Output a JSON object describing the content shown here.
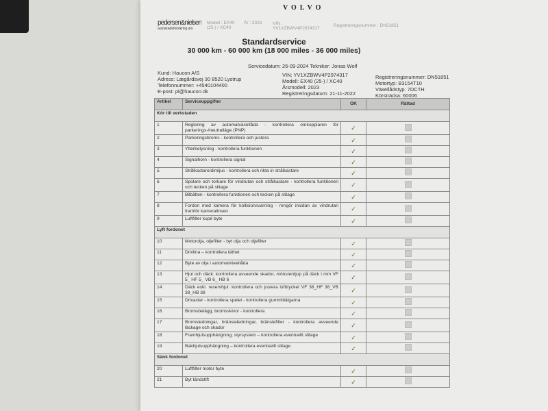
{
  "header": {
    "brand": "VOLVO",
    "dealer_logo": "pedersen&nielsen",
    "dealer_sub": "autoskadeforsikring a/s",
    "faint_model": "Modell : EX40 (25-) / XC40",
    "faint_year": "År : 2023",
    "faint_vin": "VIN : YV1XZBWV4P2974317",
    "faint_reg": "Registreringsnummer : DN51851"
  },
  "title": "Standardservice",
  "subtitle": "30 000 km - 60 000 km (18 000 miles - 36 000 miles)",
  "service_line": "Servicedatum: 26-09-2024   Tekniker: Jonas Wolf",
  "customer": [
    "Kund:  Haucon A/S",
    "Adress:  Lægårdsvej 30 8520 Lystrup",
    "Telefonnummer:  +4540104400",
    "E-post:  pl@haucon.dk"
  ],
  "vehicle": [
    "VIN:  YV1XZBWV4P2974317",
    "Modell:  EX40 (25-) / XC40",
    "Årsmodell:  2023",
    "Registreringsdatum:  21-11-2022"
  ],
  "vehicle2": [
    "Registreringsnummer:  DN51851",
    "Motortyp:  B3154T10",
    "Växellådstyp:  7DCTH",
    "Körsträcka:  60006"
  ],
  "table": {
    "headers": [
      "Artikel",
      "Serviceuppgifter",
      "OK",
      "Rättad"
    ],
    "check": "✓",
    "rows": [
      {
        "section": "Kör till verkstaden"
      },
      {
        "n": "1",
        "t": "Reglering av automatväxellåda - kontrollera omkopplaren för parkerings-/neutralläge (PNP)"
      },
      {
        "n": "2",
        "t": "Parkeringsbroms - kontrollera och justera"
      },
      {
        "n": "3",
        "t": "Ytterbelysning - kontrollera funktionen"
      },
      {
        "n": "4",
        "t": "Signalhorn - kontrollera signal"
      },
      {
        "n": "5",
        "t": "Strålkastare/dimljus - kontrollera och rikta in strålkastare"
      },
      {
        "n": "6",
        "t": "Spolare och torkare för vindrutan och strålkastare - kontrollera funktionen och tecken på slitage"
      },
      {
        "n": "7",
        "t": "Bilbälten - kontrollera funktionen och tecken på slitage"
      },
      {
        "n": "8",
        "t": "Fordon med kamera för kollisionsvarning - rengör insidan av vindrutan framför kameralinsen"
      },
      {
        "n": "9",
        "t": "Luftfilter kupé byte"
      },
      {
        "section": "Lyft fordonet"
      },
      {
        "n": "10",
        "t": "Motorolja, oljefilter - byt olja och oljefilter"
      },
      {
        "n": "11",
        "t": "Drivlina – kontrollera täthet"
      },
      {
        "n": "12",
        "t": "Byte av olja i automatväxellåda"
      },
      {
        "n": "13",
        "t": "Hjul och däck: kontrollera avseende skador, mönsterdjup på däck i mm VF 5_ HF 5_ VB 6_ HB 6"
      },
      {
        "n": "14",
        "t": "Däck exkl. reservhjul: kontrollera och justera lufttrycket VF 38_HF 38_VB 38_HB 38"
      },
      {
        "n": "15",
        "t": "Drivaxlar - kontrollera spelet - kontrollera gummibälgarna"
      },
      {
        "n": "16",
        "t": "Bromsbelägg, bromsskivor - kontrollera"
      },
      {
        "n": "17",
        "t": "Bromsledningar, bränsleledningar, bränslefilter - kontrollera avseende läckage och skador"
      },
      {
        "n": "18",
        "t": "Framhjulsupphängning, styrsystem – kontrollera eventuellt slitage"
      },
      {
        "n": "19",
        "t": "Bakhjulsupphängning – kontrollera eventuellt slitage"
      },
      {
        "section": "Sänk fordonet"
      },
      {
        "n": "20",
        "t": "Luftfilter motor byte"
      },
      {
        "n": "21",
        "t": "Byt tändstift"
      }
    ]
  }
}
